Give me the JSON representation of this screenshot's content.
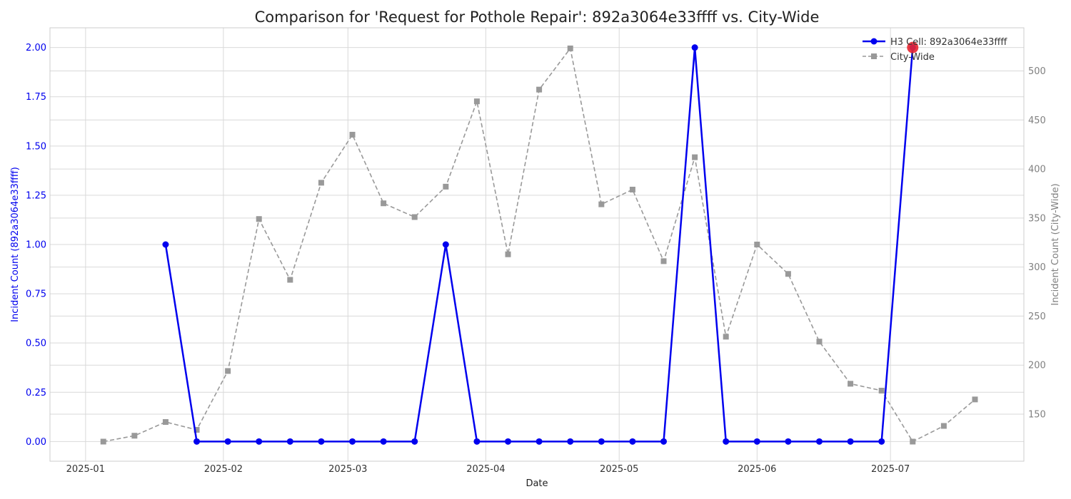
{
  "chart_data": {
    "type": "line",
    "title": "Comparison for 'Request for Pothole Repair': 892a3064e33ffff vs. City-Wide",
    "xlabel": "Date",
    "ylabel_left": "Incident Count (892a3064e33ffff)",
    "ylabel_right": "Incident Count (City-Wide)",
    "x_ticks": [
      "2025-01",
      "2025-02",
      "2025-03",
      "2025-04",
      "2025-05",
      "2025-06",
      "2025-07"
    ],
    "y_left_ticks": [
      "0.00",
      "0.25",
      "0.50",
      "0.75",
      "1.00",
      "1.25",
      "1.50",
      "1.75",
      "2.00"
    ],
    "y_right_ticks": [
      "150",
      "200",
      "250",
      "300",
      "350",
      "400",
      "450",
      "500"
    ],
    "ylim_left": [
      -0.1,
      2.1
    ],
    "ylim_right": [
      102,
      544
    ],
    "grid": true,
    "legend_position": "top-right",
    "colors": {
      "cell": "#0000ee",
      "city": "#999999",
      "highlight": "#e8252f",
      "left_axis": "#0000ee",
      "right_axis": "#808080"
    },
    "series": [
      {
        "name": "H3 Cell: 892a3064e33ffff",
        "axis": "left",
        "style": "solid",
        "marker": "circle",
        "points": [
          [
            "2025-01-19",
            1
          ],
          [
            "2025-01-26",
            0
          ],
          [
            "2025-02-02",
            0
          ],
          [
            "2025-02-09",
            0
          ],
          [
            "2025-02-16",
            0
          ],
          [
            "2025-02-23",
            0
          ],
          [
            "2025-03-02",
            0
          ],
          [
            "2025-03-09",
            0
          ],
          [
            "2025-03-16",
            0
          ],
          [
            "2025-03-23",
            1
          ],
          [
            "2025-03-30",
            0
          ],
          [
            "2025-04-06",
            0
          ],
          [
            "2025-04-13",
            0
          ],
          [
            "2025-04-20",
            0
          ],
          [
            "2025-04-27",
            0
          ],
          [
            "2025-05-04",
            0
          ],
          [
            "2025-05-11",
            0
          ],
          [
            "2025-05-18",
            2
          ],
          [
            "2025-05-25",
            0
          ],
          [
            "2025-06-01",
            0
          ],
          [
            "2025-06-08",
            0
          ],
          [
            "2025-06-15",
            0
          ],
          [
            "2025-06-22",
            0
          ],
          [
            "2025-06-29",
            0
          ],
          [
            "2025-07-06",
            2
          ]
        ],
        "highlight_point": [
          "2025-07-06",
          2
        ]
      },
      {
        "name": "City-Wide",
        "axis": "right",
        "style": "dashed",
        "marker": "square",
        "points": [
          [
            "2025-01-05",
            122
          ],
          [
            "2025-01-12",
            128
          ],
          [
            "2025-01-19",
            142
          ],
          [
            "2025-01-26",
            134
          ],
          [
            "2025-02-02",
            194
          ],
          [
            "2025-02-09",
            349
          ],
          [
            "2025-02-16",
            287
          ],
          [
            "2025-02-23",
            386
          ],
          [
            "2025-03-02",
            435
          ],
          [
            "2025-03-09",
            365
          ],
          [
            "2025-03-16",
            351
          ],
          [
            "2025-03-23",
            382
          ],
          [
            "2025-03-30",
            469
          ],
          [
            "2025-04-06",
            313
          ],
          [
            "2025-04-13",
            481
          ],
          [
            "2025-04-20",
            523
          ],
          [
            "2025-04-27",
            364
          ],
          [
            "2025-05-04",
            379
          ],
          [
            "2025-05-11",
            306
          ],
          [
            "2025-05-18",
            412
          ],
          [
            "2025-05-25",
            229
          ],
          [
            "2025-06-01",
            323
          ],
          [
            "2025-06-08",
            293
          ],
          [
            "2025-06-15",
            224
          ],
          [
            "2025-06-22",
            181
          ],
          [
            "2025-06-29",
            174
          ],
          [
            "2025-07-06",
            122
          ],
          [
            "2025-07-13",
            138
          ],
          [
            "2025-07-20",
            165
          ]
        ]
      }
    ]
  }
}
